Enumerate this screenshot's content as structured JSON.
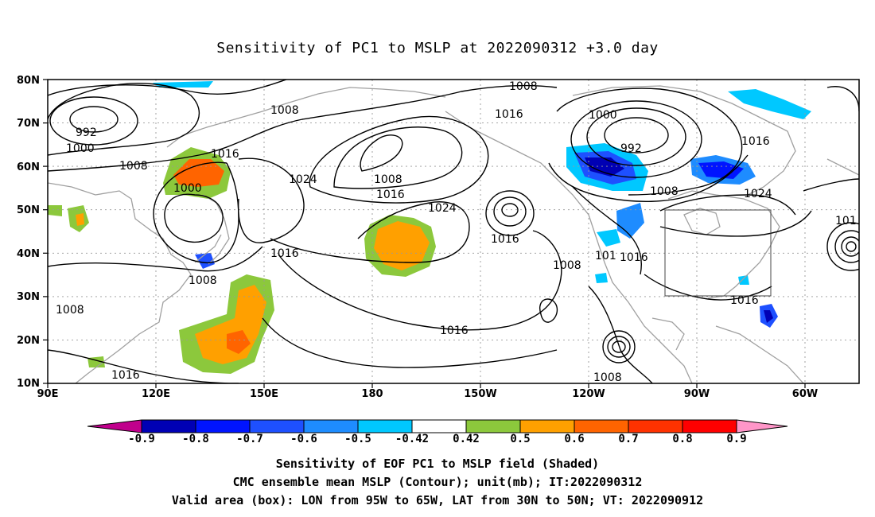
{
  "title": "Sensitivity of PC1 to MSLP at 2022090312 +3.0 day",
  "axes": {
    "lat_labels": [
      "80N",
      "70N",
      "60N",
      "50N",
      "40N",
      "30N",
      "20N",
      "10N"
    ],
    "lon_labels": [
      "90E",
      "120E",
      "150E",
      "180",
      "150W",
      "120W",
      "90W",
      "60W"
    ]
  },
  "contour_labels": [
    {
      "id": "c1008a",
      "text": "1008"
    },
    {
      "id": "c992a",
      "text": "992"
    },
    {
      "id": "c1000a",
      "text": "1000"
    },
    {
      "id": "c1008b",
      "text": "1008"
    },
    {
      "id": "c1008c",
      "text": "1008"
    },
    {
      "id": "c1016a",
      "text": "1016"
    },
    {
      "id": "c1000b",
      "text": "1000"
    },
    {
      "id": "c1024a",
      "text": "1024"
    },
    {
      "id": "c1008d",
      "text": "1008"
    },
    {
      "id": "c1016b",
      "text": "1016"
    },
    {
      "id": "c1016c",
      "text": "1016"
    },
    {
      "id": "c1024b",
      "text": "1024"
    },
    {
      "id": "c1016d",
      "text": "1016"
    },
    {
      "id": "c1008e",
      "text": "1008"
    },
    {
      "id": "c1008f",
      "text": "1008"
    },
    {
      "id": "c1016e",
      "text": "1016"
    },
    {
      "id": "c1016f",
      "text": "1016"
    },
    {
      "id": "c1000c",
      "text": "1000"
    },
    {
      "id": "c992b",
      "text": "992"
    },
    {
      "id": "c1008g",
      "text": "1008"
    },
    {
      "id": "c1016g",
      "text": "1016"
    },
    {
      "id": "c1024c",
      "text": "1024"
    },
    {
      "id": "c1016h",
      "text": "1016"
    },
    {
      "id": "c1016i",
      "text": "1016"
    },
    {
      "id": "c1016j",
      "text": "1016"
    },
    {
      "id": "c1008h",
      "text": "1008"
    },
    {
      "id": "c1008i",
      "text": "1008"
    },
    {
      "id": "c1016k",
      "text": "1016"
    },
    {
      "id": "c101",
      "text": "101"
    },
    {
      "id": "c101b",
      "text": "101"
    }
  ],
  "colorbar": {
    "labels": [
      "-0.9",
      "-0.8",
      "-0.7",
      "-0.6",
      "-0.5",
      "-0.42",
      "0.42",
      "0.5",
      "0.6",
      "0.7",
      "0.8",
      "0.9"
    ],
    "colors": [
      "#c0008c",
      "#0000b4",
      "#0014ff",
      "#1e50ff",
      "#1e8cff",
      "#00c8ff",
      "#ffffff",
      "#8cc83c",
      "#ffa000",
      "#ff6400",
      "#ff3200",
      "#ff0000",
      "#ff96c8"
    ]
  },
  "captions": {
    "line1": "Sensitivity of EOF PC1 to MSLP field (Shaded)",
    "line2": "CMC ensemble mean MSLP (Contour); unit(mb); IT:2022090312",
    "line3": "Valid area (box): LON from 95W to 65W, LAT from 30N to 50N; VT: 2022090912"
  },
  "valid_area": {
    "lon_min": -95,
    "lon_max": -65,
    "lat_min": 30,
    "lat_max": 50
  }
}
